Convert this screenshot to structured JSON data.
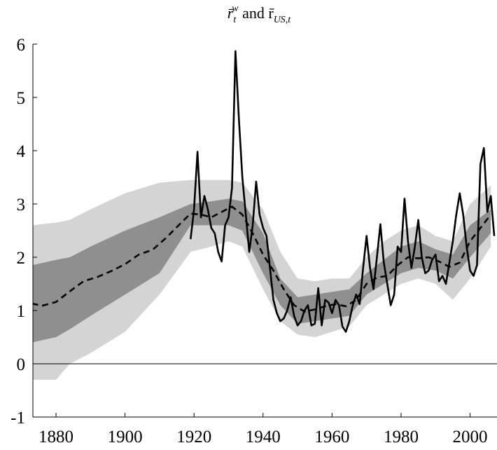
{
  "chart_data": {
    "type": "line",
    "title": [
      "r̄",
      "t",
      "w",
      " and r̄",
      "US,t"
    ],
    "xlim": [
      1873.3,
      2007.8
    ],
    "xticks": [
      1880,
      1900,
      1920,
      1940,
      1960,
      1980,
      2000
    ],
    "ylim": [
      -1,
      6
    ],
    "yticks": [
      -1,
      0,
      1,
      2,
      3,
      4,
      5,
      6
    ],
    "zero_line": true,
    "bands": [
      {
        "color": "#d4d4d4",
        "x": [
          1873,
          1880,
          1884,
          1890,
          1900,
          1910,
          1919,
          1925,
          1930,
          1934,
          1940,
          1945,
          1950,
          1955,
          1960,
          1965,
          1970,
          1975,
          1980,
          1985,
          1990,
          1995,
          2000,
          2006
        ],
        "lower": [
          -0.3,
          -0.3,
          0,
          0.2,
          0.6,
          1.3,
          2.1,
          2.2,
          2.3,
          2.2,
          1.4,
          0.8,
          0.55,
          0.5,
          0.6,
          0.7,
          1.1,
          1.3,
          1.5,
          1.6,
          1.5,
          1.2,
          1.6,
          2.2
        ],
        "upper": [
          2.6,
          2.65,
          2.7,
          2.9,
          3.2,
          3.4,
          3.45,
          3.45,
          3.45,
          3.4,
          2.9,
          2.1,
          1.6,
          1.55,
          1.6,
          1.6,
          2.0,
          2.3,
          2.5,
          2.6,
          2.4,
          2.3,
          3.0,
          3.35
        ]
      },
      {
        "color": "#8f8f8f",
        "x": [
          1873,
          1880,
          1884,
          1890,
          1900,
          1910,
          1919,
          1925,
          1930,
          1934,
          1940,
          1945,
          1950,
          1955,
          1960,
          1965,
          1970,
          1975,
          1980,
          1985,
          1990,
          1995,
          2000,
          2006
        ],
        "lower": [
          0.4,
          0.5,
          0.65,
          0.9,
          1.3,
          1.7,
          2.6,
          2.6,
          2.6,
          2.5,
          1.7,
          1.1,
          0.75,
          0.8,
          0.85,
          0.9,
          1.3,
          1.5,
          1.7,
          1.8,
          1.75,
          1.6,
          2.0,
          2.45
        ],
        "upper": [
          1.85,
          1.95,
          2.0,
          2.2,
          2.5,
          2.75,
          3.0,
          3.05,
          3.1,
          3.05,
          2.45,
          1.6,
          1.25,
          1.3,
          1.35,
          1.4,
          1.7,
          1.95,
          2.2,
          2.3,
          2.15,
          2.05,
          2.6,
          2.9
        ]
      }
    ],
    "series": [
      {
        "color": "#000000",
        "dashed": true,
        "x": [
          1873,
          1876,
          1880,
          1884,
          1888,
          1892,
          1896,
          1900,
          1904,
          1908,
          1912,
          1916,
          1919,
          1922,
          1925,
          1928,
          1931,
          1934,
          1937,
          1940,
          1943,
          1946,
          1949,
          1952,
          1955,
          1958,
          1961,
          1964,
          1967,
          1970,
          1973,
          1976,
          1979,
          1982,
          1985,
          1988,
          1991,
          1994,
          1997,
          2000,
          2003,
          2006
        ],
        "values": [
          1.13,
          1.09,
          1.16,
          1.36,
          1.55,
          1.63,
          1.74,
          1.87,
          2.05,
          2.14,
          2.37,
          2.63,
          2.82,
          2.8,
          2.75,
          2.85,
          2.95,
          2.8,
          2.45,
          2.05,
          1.75,
          1.4,
          1.1,
          0.98,
          1.02,
          1.08,
          1.12,
          1.08,
          1.2,
          1.5,
          1.62,
          1.65,
          1.85,
          2.0,
          1.98,
          2.0,
          1.92,
          1.82,
          1.9,
          2.3,
          2.55,
          2.8
        ]
      },
      {
        "color": "#000000",
        "dashed": false,
        "x": [
          1919,
          1920,
          1921,
          1922,
          1923,
          1924,
          1925,
          1926,
          1927,
          1928,
          1929,
          1930,
          1931,
          1932,
          1933,
          1934,
          1935,
          1936,
          1937,
          1938,
          1939,
          1940,
          1941,
          1942,
          1943,
          1944,
          1945,
          1946,
          1947,
          1948,
          1949,
          1950,
          1951,
          1952,
          1953,
          1954,
          1955,
          1956,
          1957,
          1958,
          1959,
          1960,
          1961,
          1962,
          1963,
          1964,
          1965,
          1966,
          1967,
          1968,
          1969,
          1970,
          1971,
          1972,
          1973,
          1974,
          1975,
          1976,
          1977,
          1978,
          1979,
          1980,
          1981,
          1982,
          1983,
          1984,
          1985,
          1986,
          1987,
          1988,
          1989,
          1990,
          1991,
          1992,
          1993,
          1994,
          1995,
          1996,
          1997,
          1998,
          1999,
          2000,
          2001,
          2002,
          2003,
          2004,
          2005,
          2006,
          2007
        ],
        "values": [
          2.34,
          2.9,
          3.98,
          2.75,
          3.15,
          2.9,
          2.55,
          2.45,
          2.1,
          1.92,
          2.6,
          2.75,
          3.3,
          5.87,
          4.6,
          3.5,
          2.8,
          2.1,
          2.6,
          3.42,
          2.8,
          2.55,
          2.4,
          1.8,
          1.2,
          0.95,
          0.8,
          0.85,
          1.0,
          1.25,
          0.9,
          0.72,
          0.8,
          1.0,
          1.1,
          0.72,
          0.75,
          1.42,
          0.72,
          1.2,
          1.15,
          0.95,
          1.2,
          1.1,
          0.7,
          0.6,
          0.8,
          1.1,
          1.3,
          1.12,
          1.8,
          2.4,
          1.8,
          1.4,
          2.0,
          2.62,
          1.9,
          1.5,
          1.1,
          1.3,
          2.2,
          2.1,
          3.1,
          2.3,
          1.8,
          2.2,
          2.7,
          2.0,
          1.7,
          1.75,
          1.95,
          2.05,
          1.55,
          1.65,
          1.5,
          1.9,
          2.3,
          2.8,
          3.2,
          2.8,
          2.2,
          1.75,
          1.65,
          1.85,
          3.75,
          4.05,
          2.85,
          3.15,
          2.4
        ]
      }
    ]
  }
}
